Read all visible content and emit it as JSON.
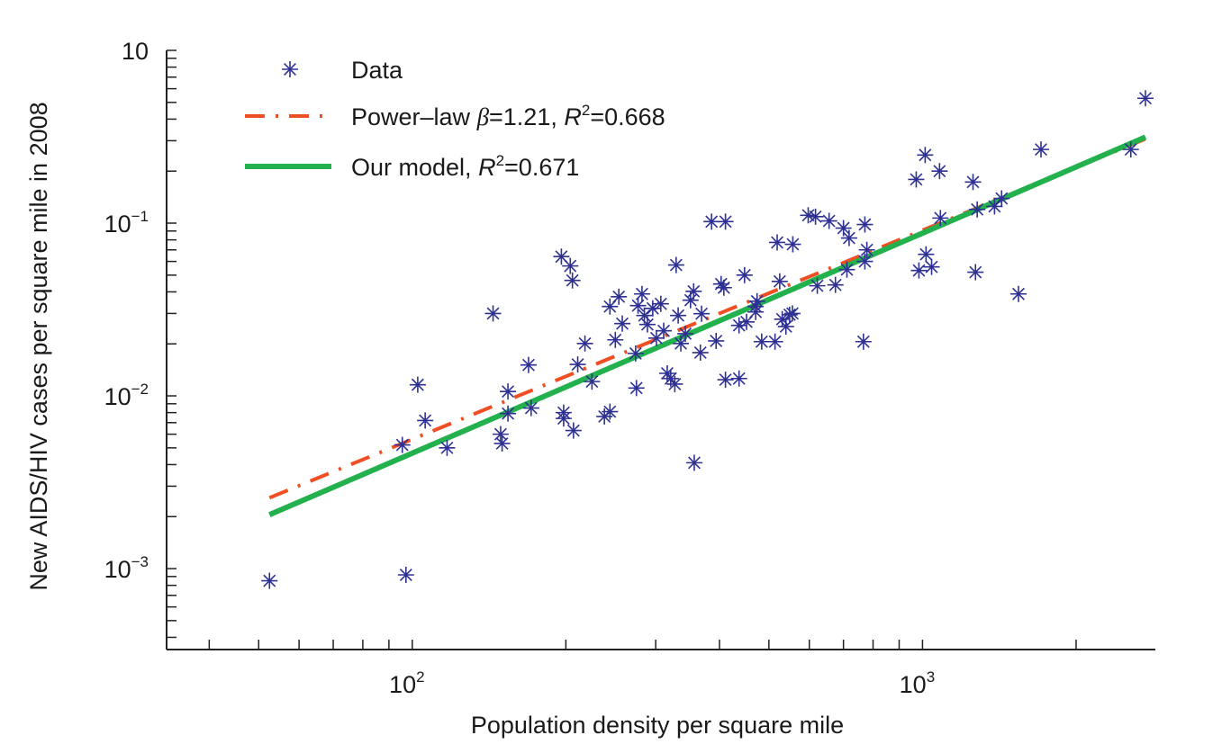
{
  "chart_data": {
    "type": "scatter",
    "xlabel": "Population density per square mile",
    "ylabel": "New AIDS/HIV cases per square mile in 2008",
    "x_scale": "log",
    "y_scale": "log",
    "xlim": [
      33,
      2860
    ],
    "ylim": [
      0.00034,
      1
    ],
    "grid": false,
    "legend_placement": "top-left",
    "x_ticks": [
      {
        "value": 100,
        "base": "10",
        "exp": "2"
      },
      {
        "value": 1000,
        "base": "10",
        "exp": "3"
      }
    ],
    "y_ticks": [
      {
        "value": 1,
        "base": "10",
        "exp": ""
      },
      {
        "value": 0.1,
        "base": "10",
        "exp": "−1"
      },
      {
        "value": 0.01,
        "base": "10",
        "exp": "−2"
      },
      {
        "value": 0.001,
        "base": "10",
        "exp": "−3"
      }
    ],
    "colors": {
      "data": "#2e3192",
      "power_law": "#f04e23",
      "model": "#22b14c",
      "axis": "#222222"
    },
    "legend": [
      {
        "key": "data",
        "label": "Data",
        "marker": "asterisk"
      },
      {
        "key": "power_law",
        "label_pre": "Power–law ",
        "beta_sym": "β",
        "beta_text": "=1.21, ",
        "r_sym": "R",
        "r_exp": "2",
        "r_text": "=0.668",
        "style": "dash-dot"
      },
      {
        "key": "model",
        "label_pre": "Our model, ",
        "r_sym": "R",
        "r_exp": "2",
        "r_text": "=0.671",
        "style": "solid"
      }
    ],
    "series": [
      {
        "key": "data",
        "type": "scatter",
        "points": [
          [
            52.5,
            0.00085
          ],
          [
            95.6,
            0.0052
          ],
          [
            97.2,
            0.00092
          ],
          [
            102.5,
            0.0116
          ],
          [
            106,
            0.0072
          ],
          [
            117,
            0.005
          ],
          [
            144,
            0.03
          ],
          [
            149,
            0.006
          ],
          [
            150,
            0.0053
          ],
          [
            154,
            0.0106
          ],
          [
            154,
            0.0079
          ],
          [
            169,
            0.0151
          ],
          [
            171,
            0.0085
          ],
          [
            196,
            0.064
          ],
          [
            204,
            0.0565
          ],
          [
            206,
            0.0466
          ],
          [
            198,
            0.008
          ],
          [
            198,
            0.0074
          ],
          [
            207,
            0.0063
          ],
          [
            211,
            0.0152
          ],
          [
            218,
            0.0201
          ],
          [
            225,
            0.0121
          ],
          [
            238,
            0.0076
          ],
          [
            244,
            0.0081
          ],
          [
            244,
            0.0329
          ],
          [
            254,
            0.0375
          ],
          [
            250,
            0.0211
          ],
          [
            258,
            0.0262
          ],
          [
            274,
            0.0176
          ],
          [
            275,
            0.0111
          ],
          [
            277,
            0.0333
          ],
          [
            282,
            0.0389
          ],
          [
            285,
            0.0292
          ],
          [
            289,
            0.0259
          ],
          [
            296,
            0.0321
          ],
          [
            307,
            0.0341
          ],
          [
            301,
            0.0216
          ],
          [
            311,
            0.0238
          ],
          [
            316,
            0.0135
          ],
          [
            321,
            0.0126
          ],
          [
            327,
            0.0117
          ],
          [
            329,
            0.0572
          ],
          [
            332,
            0.0292
          ],
          [
            336,
            0.0201
          ],
          [
            343,
            0.0229
          ],
          [
            351,
            0.0358
          ],
          [
            356,
            0.0403
          ],
          [
            367,
            0.0178
          ],
          [
            369,
            0.0299
          ],
          [
            357,
            0.0041
          ],
          [
            386,
            0.102
          ],
          [
            394,
            0.0208
          ],
          [
            403,
            0.0444
          ],
          [
            408,
            0.0423
          ],
          [
            411,
            0.102
          ],
          [
            411,
            0.0124
          ],
          [
            437,
            0.0126
          ],
          [
            437,
            0.0256
          ],
          [
            448,
            0.05
          ],
          [
            452,
            0.0268
          ],
          [
            471,
            0.0306
          ],
          [
            471,
            0.0329
          ],
          [
            474,
            0.0353
          ],
          [
            484,
            0.0206
          ],
          [
            514,
            0.0206
          ],
          [
            519,
            0.0773
          ],
          [
            525,
            0.046
          ],
          [
            531,
            0.0278
          ],
          [
            540,
            0.0252
          ],
          [
            549,
            0.0295
          ],
          [
            556,
            0.03
          ],
          [
            557,
            0.0754
          ],
          [
            597,
            0.111
          ],
          [
            617,
            0.109
          ],
          [
            622,
            0.0434
          ],
          [
            656,
            0.103
          ],
          [
            675,
            0.0439
          ],
          [
            700,
            0.0936
          ],
          [
            718,
            0.082
          ],
          [
            711,
            0.0538
          ],
          [
            766,
            0.0206
          ],
          [
            771,
            0.0982
          ],
          [
            771,
            0.06
          ],
          [
            778,
            0.07
          ],
          [
            972,
            0.179
          ],
          [
            984,
            0.0532
          ],
          [
            1012,
            0.248
          ],
          [
            1016,
            0.066
          ],
          [
            1042,
            0.0558
          ],
          [
            1080,
            0.2
          ],
          [
            1084,
            0.107
          ],
          [
            1256,
            0.173
          ],
          [
            1270,
            0.052
          ],
          [
            1280,
            0.12
          ],
          [
            1384,
            0.125
          ],
          [
            1429,
            0.139
          ],
          [
            1542,
            0.0389
          ],
          [
            1707,
            0.267
          ],
          [
            2560,
            0.267
          ],
          [
            2735,
            0.528
          ]
        ]
      },
      {
        "key": "power_law",
        "type": "line",
        "x_range": [
          52.5,
          2735
        ],
        "exponent": 1.21,
        "y_at_start": 0.00257
      },
      {
        "key": "model",
        "type": "line",
        "x_range": [
          52.5,
          2735
        ],
        "y_at_start": 0.00205,
        "y_at_end": 0.315
      }
    ]
  }
}
